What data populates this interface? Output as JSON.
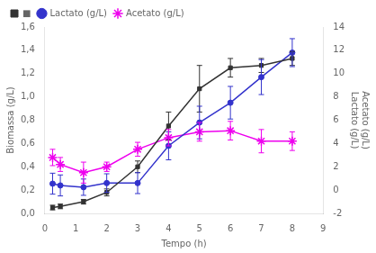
{
  "chart_data": {
    "type": "line",
    "xlabel": "Tempo (h)",
    "ylabel": "Biomassa (g/L)",
    "y2label": [
      "Acetato (g/L)",
      "Lactato (g/L)"
    ],
    "x": [
      0.25,
      0.5,
      1.25,
      2.0,
      3.0,
      4.0,
      5.0,
      6.0,
      7.0,
      8.0
    ],
    "xlim": [
      0,
      9
    ],
    "xticks": [
      0,
      1,
      2,
      3,
      4,
      5,
      6,
      7,
      8,
      9
    ],
    "ylim": [
      0,
      1.6
    ],
    "yticks": [
      {
        "value": 0.0,
        "label": "0,0"
      },
      {
        "value": 0.2,
        "label": "0,2"
      },
      {
        "value": 0.4,
        "label": "0,4"
      },
      {
        "value": 0.6,
        "label": "0,6"
      },
      {
        "value": 0.8,
        "label": "0,8"
      },
      {
        "value": 1.0,
        "label": "1,0"
      },
      {
        "value": 1.2,
        "label": "1,2"
      },
      {
        "value": 1.4,
        "label": "1,4"
      },
      {
        "value": 1.6,
        "label": "1,6"
      }
    ],
    "y2lim": [
      -2,
      14
    ],
    "y2ticks": [
      -2,
      0,
      2,
      4,
      6,
      8,
      10,
      12,
      14
    ],
    "grid": false,
    "legend": "upper left",
    "series": [
      {
        "name": "■",
        "color": "#333333",
        "marker": "square",
        "values": [
          0.05,
          0.06,
          0.1,
          0.18,
          0.4,
          0.75,
          1.07,
          1.25,
          1.27,
          1.33
        ],
        "errors": [
          0.02,
          0.02,
          0.02,
          0.03,
          0.05,
          0.12,
          0.2,
          0.08,
          0.06,
          0.06
        ]
      },
      {
        "name": "Lactato (g/L)",
        "color": "#3333cc",
        "marker": "circle",
        "axis": "y2",
        "values": [
          0.55,
          0.4,
          0.25,
          0.6,
          0.6,
          3.8,
          5.8,
          7.5,
          9.7,
          11.8
        ],
        "errors": [
          0.9,
          0.9,
          0.7,
          0.8,
          0.9,
          1.2,
          1.4,
          1.4,
          1.5,
          1.2
        ]
      },
      {
        "name": "Acetato (g/L)",
        "color": "#ee00ee",
        "marker": "star",
        "axis": "y2",
        "values": [
          2.8,
          2.2,
          1.5,
          2.0,
          3.5,
          4.5,
          5.0,
          5.1,
          4.2,
          4.2
        ],
        "errors": [
          0.7,
          0.6,
          0.9,
          0.4,
          0.6,
          0.7,
          0.8,
          0.8,
          1.0,
          0.8
        ]
      }
    ]
  }
}
